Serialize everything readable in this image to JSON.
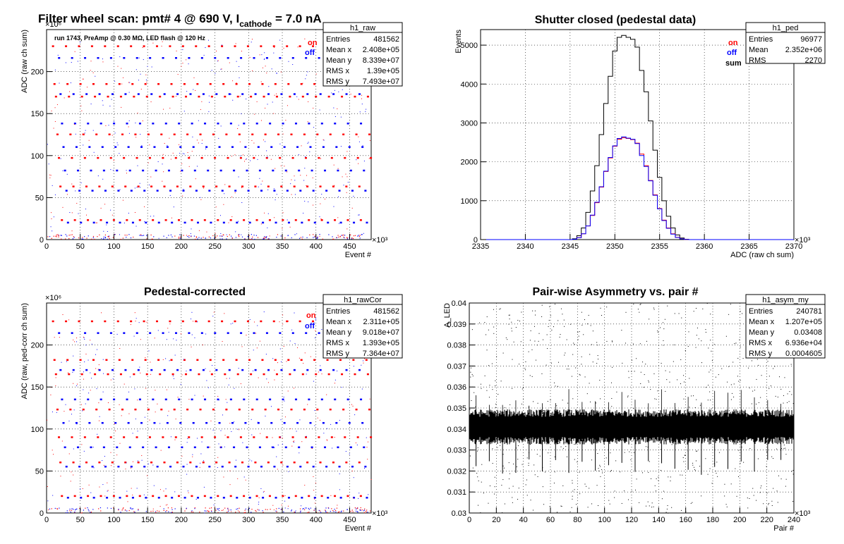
{
  "window": {
    "title_text": "Filter wheel scan: pmt#   4 @   690 V, I",
    "title_sub": "cathode",
    "title_tail": " = 7.0 nA"
  },
  "colors": {
    "on": "#ff0000",
    "off": "#0000ff",
    "sum": "#000000"
  },
  "chart_data": [
    {
      "id": "raw",
      "type": "scatter",
      "title": "",
      "xlabel": "Event #",
      "ylabel": "ADC (raw ch sum)",
      "x_exponent": "×10³",
      "y_exponent": "×10⁶",
      "xlim": [
        0,
        482
      ],
      "ylim": [
        0,
        250
      ],
      "xticks": [
        "0",
        "50",
        "100",
        "150",
        "200",
        "250",
        "300",
        "350",
        "400",
        "450"
      ],
      "yticks": [
        "0",
        "50",
        "100",
        "150",
        "200"
      ],
      "annotation": "run 1743, PreAmp @ 0.30 MΩ, LED flash @  120 Hz",
      "legend": [
        "on",
        "off"
      ],
      "stats": {
        "name": "h1_raw",
        "rows": [
          [
            "Entries",
            "481562"
          ],
          [
            "Mean x",
            "2.408e+05"
          ],
          [
            "Mean y",
            "8.339e+07"
          ],
          [
            "RMS x",
            "1.39e+05"
          ],
          [
            "RMS y",
            "7.493e+07"
          ]
        ]
      },
      "levels_on": [
        230,
        185,
        170,
        125,
        97,
        63,
        23
      ],
      "levels_off": [
        216,
        173,
        138,
        110,
        82,
        58,
        20
      ]
    },
    {
      "id": "ped",
      "type": "line",
      "title": "Shutter closed (pedestal data)",
      "xlabel": "ADC (raw ch sum)",
      "ylabel": "Events",
      "x_exponent": "×10³",
      "xlim": [
        2335,
        2370
      ],
      "ylim": [
        0,
        5400
      ],
      "xticks": [
        "2335",
        "2340",
        "2345",
        "2350",
        "2355",
        "2360",
        "2365",
        "2370"
      ],
      "yticks": [
        "0",
        "1000",
        "2000",
        "3000",
        "4000",
        "5000"
      ],
      "legend": [
        "on",
        "off",
        "sum"
      ],
      "stats": {
        "name": "h1_ped",
        "rows": [
          [
            "Entries",
            "96977"
          ],
          [
            "Mean",
            "2.352e+06"
          ],
          [
            "RMS",
            "2270"
          ]
        ]
      },
      "series": [
        {
          "name": "sum",
          "values": [
            [
              2345.5,
              20
            ],
            [
              2346,
              100
            ],
            [
              2346.5,
              300
            ],
            [
              2347,
              700
            ],
            [
              2347.5,
              1250
            ],
            [
              2348,
              1900
            ],
            [
              2348.5,
              2700
            ],
            [
              2349,
              3500
            ],
            [
              2349.5,
              4200
            ],
            [
              2350,
              4850
            ],
            [
              2350.5,
              5200
            ],
            [
              2351,
              5250
            ],
            [
              2351.5,
              5200
            ],
            [
              2352,
              5150
            ],
            [
              2352.5,
              4950
            ],
            [
              2353,
              4350
            ],
            [
              2353.5,
              3800
            ],
            [
              2354,
              3050
            ],
            [
              2354.5,
              2300
            ],
            [
              2355,
              1600
            ],
            [
              2355.5,
              1000
            ],
            [
              2356,
              600
            ],
            [
              2356.5,
              300
            ],
            [
              2357,
              120
            ],
            [
              2357.5,
              40
            ],
            [
              2358,
              10
            ]
          ]
        },
        {
          "name": "on",
          "values": [
            [
              2345.5,
              10
            ],
            [
              2346,
              50
            ],
            [
              2346.5,
              150
            ],
            [
              2347,
              350
            ],
            [
              2347.5,
              620
            ],
            [
              2348,
              950
            ],
            [
              2348.5,
              1350
            ],
            [
              2349,
              1750
            ],
            [
              2349.5,
              2100
            ],
            [
              2350,
              2400
            ],
            [
              2350.5,
              2580
            ],
            [
              2351,
              2620
            ],
            [
              2351.5,
              2600
            ],
            [
              2352,
              2570
            ],
            [
              2352.5,
              2480
            ],
            [
              2353,
              2200
            ],
            [
              2353.5,
              1900
            ],
            [
              2354,
              1520
            ],
            [
              2354.5,
              1150
            ],
            [
              2355,
              800
            ],
            [
              2355.5,
              500
            ],
            [
              2356,
              300
            ],
            [
              2356.5,
              150
            ],
            [
              2357,
              60
            ],
            [
              2357.5,
              20
            ],
            [
              2358,
              5
            ]
          ]
        },
        {
          "name": "off",
          "values": [
            [
              2345.5,
              10
            ],
            [
              2346,
              50
            ],
            [
              2346.5,
              150
            ],
            [
              2347,
              350
            ],
            [
              2347.5,
              630
            ],
            [
              2348,
              960
            ],
            [
              2348.5,
              1360
            ],
            [
              2349,
              1760
            ],
            [
              2349.5,
              2110
            ],
            [
              2350,
              2410
            ],
            [
              2350.5,
              2600
            ],
            [
              2351,
              2640
            ],
            [
              2351.5,
              2610
            ],
            [
              2352,
              2580
            ],
            [
              2352.5,
              2470
            ],
            [
              2353,
              2160
            ],
            [
              2353.5,
              1880
            ],
            [
              2354,
              1510
            ],
            [
              2354.5,
              1140
            ],
            [
              2355,
              790
            ],
            [
              2355.5,
              490
            ],
            [
              2356,
              290
            ],
            [
              2356.5,
              140
            ],
            [
              2357,
              55
            ],
            [
              2357.5,
              18
            ],
            [
              2358,
              5
            ]
          ]
        }
      ]
    },
    {
      "id": "rawcor",
      "type": "scatter",
      "title": "Pedestal-corrected",
      "xlabel": "Event #",
      "ylabel": "ADC (raw, ped-corr ch sum)",
      "x_exponent": "×10³",
      "y_exponent": "×10⁶",
      "xlim": [
        0,
        482
      ],
      "ylim": [
        0,
        250
      ],
      "xticks": [
        "0",
        "50",
        "100",
        "150",
        "200",
        "250",
        "300",
        "350",
        "400",
        "450"
      ],
      "yticks": [
        "0",
        "50",
        "100",
        "150",
        "200"
      ],
      "legend": [
        "on",
        "off"
      ],
      "stats": {
        "name": "h1_rawCor",
        "rows": [
          [
            "Entries",
            "481562"
          ],
          [
            "Mean x",
            "2.311e+05"
          ],
          [
            "Mean y",
            "9.018e+07"
          ],
          [
            "RMS x",
            "1.393e+05"
          ],
          [
            "RMS y",
            "7.364e+07"
          ]
        ]
      },
      "levels_on": [
        228,
        182,
        165,
        123,
        90,
        60,
        20
      ],
      "levels_off": [
        214,
        170,
        135,
        107,
        78,
        55,
        18
      ]
    },
    {
      "id": "asym",
      "type": "scatter",
      "title": "Pair-wise Asymmetry vs. pair #",
      "xlabel": "Pair #",
      "ylabel": "A_LED",
      "x_exponent": "×10³",
      "xlim": [
        0,
        240
      ],
      "ylim": [
        0.03,
        0.04
      ],
      "xticks": [
        "0",
        "20",
        "40",
        "60",
        "80",
        "100",
        "120",
        "140",
        "160",
        "180",
        "200",
        "220",
        "240"
      ],
      "yticks": [
        "0.03",
        "0.031",
        "0.032",
        "0.033",
        "0.034",
        "0.035",
        "0.036",
        "0.037",
        "0.038",
        "0.039",
        "0.04"
      ],
      "stats": {
        "name": "h1_asym_my",
        "rows": [
          [
            "Entries",
            "240781"
          ],
          [
            "Mean x",
            "1.207e+05"
          ],
          [
            "Mean y",
            "0.03408"
          ],
          [
            "RMS x",
            "6.936e+04"
          ],
          [
            "RMS y",
            "0.0004605"
          ]
        ]
      },
      "band_center": 0.0341,
      "band_halfwidth": 0.0006
    }
  ]
}
